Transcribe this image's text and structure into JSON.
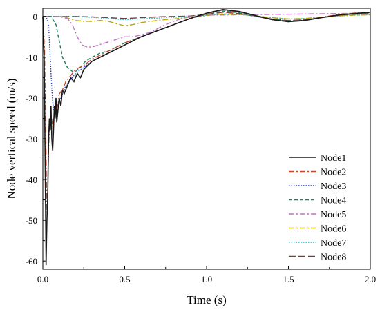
{
  "chart_data": {
    "type": "line",
    "title": "",
    "xlabel": "Time (s)",
    "ylabel": "Node vertical speed (m/s)",
    "xlim": [
      0,
      2.0
    ],
    "ylim": [
      -62,
      2
    ],
    "xticks": [
      "0.0",
      "0.5",
      "1.0",
      "1.5",
      "2.0"
    ],
    "yticks": [
      "-60",
      "-50",
      "-40",
      "-30",
      "-20",
      "-10",
      "0"
    ],
    "grid": false,
    "legend_position": "bottom-right",
    "series": [
      {
        "name": "Node1",
        "color": "#1a1a1a",
        "dash": "solid",
        "points": [
          [
            0,
            0
          ],
          [
            0.008,
            -10
          ],
          [
            0.015,
            -40
          ],
          [
            0.02,
            -61
          ],
          [
            0.025,
            -50
          ],
          [
            0.03,
            -44
          ],
          [
            0.035,
            -30
          ],
          [
            0.04,
            -25
          ],
          [
            0.045,
            -28
          ],
          [
            0.05,
            -22
          ],
          [
            0.055,
            -30
          ],
          [
            0.06,
            -33
          ],
          [
            0.065,
            -28
          ],
          [
            0.07,
            -22
          ],
          [
            0.075,
            -25
          ],
          [
            0.08,
            -20
          ],
          [
            0.085,
            -26
          ],
          [
            0.09,
            -24
          ],
          [
            0.1,
            -20
          ],
          [
            0.11,
            -22
          ],
          [
            0.12,
            -18
          ],
          [
            0.13,
            -19
          ],
          [
            0.15,
            -17
          ],
          [
            0.17,
            -15
          ],
          [
            0.19,
            -16
          ],
          [
            0.21,
            -14
          ],
          [
            0.23,
            -15
          ],
          [
            0.25,
            -13
          ],
          [
            0.3,
            -11
          ],
          [
            0.35,
            -10
          ],
          [
            0.4,
            -9
          ],
          [
            0.45,
            -8
          ],
          [
            0.5,
            -7
          ],
          [
            0.6,
            -5
          ],
          [
            0.7,
            -3.5
          ],
          [
            0.8,
            -2
          ],
          [
            0.9,
            -0.5
          ],
          [
            1.0,
            0.8
          ],
          [
            1.1,
            1.7
          ],
          [
            1.2,
            1.2
          ],
          [
            1.3,
            0.2
          ],
          [
            1.4,
            -0.8
          ],
          [
            1.5,
            -1.3
          ],
          [
            1.6,
            -1.0
          ],
          [
            1.7,
            -0.3
          ],
          [
            1.8,
            0.3
          ],
          [
            1.9,
            0.7
          ],
          [
            2.0,
            1.0
          ]
        ]
      },
      {
        "name": "Node2",
        "color": "#c8452b",
        "dash": "dashdot",
        "points": [
          [
            0,
            0
          ],
          [
            0.01,
            -8
          ],
          [
            0.018,
            -30
          ],
          [
            0.025,
            -48
          ],
          [
            0.03,
            -42
          ],
          [
            0.035,
            -33
          ],
          [
            0.04,
            -27
          ],
          [
            0.05,
            -24
          ],
          [
            0.06,
            -27
          ],
          [
            0.07,
            -24
          ],
          [
            0.08,
            -21
          ],
          [
            0.09,
            -23
          ],
          [
            0.1,
            -19
          ],
          [
            0.12,
            -18
          ],
          [
            0.14,
            -16
          ],
          [
            0.16,
            -15
          ],
          [
            0.18,
            -14
          ],
          [
            0.2,
            -13
          ],
          [
            0.25,
            -12
          ],
          [
            0.3,
            -10.5
          ],
          [
            0.35,
            -9.5
          ],
          [
            0.4,
            -8.5
          ],
          [
            0.45,
            -7.5
          ],
          [
            0.5,
            -6.5
          ],
          [
            0.6,
            -5
          ],
          [
            0.7,
            -3.5
          ],
          [
            0.8,
            -2
          ],
          [
            0.9,
            -0.5
          ],
          [
            1.0,
            0.7
          ],
          [
            1.1,
            1.6
          ],
          [
            1.2,
            1.1
          ],
          [
            1.3,
            0.1
          ],
          [
            1.4,
            -0.8
          ],
          [
            1.5,
            -1.3
          ],
          [
            1.6,
            -0.9
          ],
          [
            1.7,
            -0.2
          ],
          [
            1.8,
            0.4
          ],
          [
            1.9,
            0.8
          ],
          [
            2.0,
            1.0
          ]
        ]
      },
      {
        "name": "Node3",
        "color": "#2340c8",
        "dash": "dotted",
        "points": [
          [
            0,
            0
          ],
          [
            0.02,
            0
          ],
          [
            0.035,
            -2
          ],
          [
            0.045,
            -10
          ],
          [
            0.055,
            -18
          ],
          [
            0.065,
            -23
          ],
          [
            0.075,
            -24
          ],
          [
            0.085,
            -22
          ],
          [
            0.1,
            -21
          ],
          [
            0.12,
            -19
          ],
          [
            0.14,
            -17
          ],
          [
            0.16,
            -16
          ],
          [
            0.18,
            -15
          ],
          [
            0.2,
            -14
          ],
          [
            0.25,
            -12.5
          ],
          [
            0.3,
            -11
          ],
          [
            0.35,
            -10
          ],
          [
            0.4,
            -9
          ],
          [
            0.5,
            -7
          ],
          [
            0.6,
            -5
          ],
          [
            0.7,
            -3.5
          ],
          [
            0.8,
            -2
          ],
          [
            0.9,
            -0.5
          ],
          [
            1.0,
            0.7
          ],
          [
            1.1,
            1.6
          ],
          [
            1.2,
            1.1
          ],
          [
            1.3,
            0.1
          ],
          [
            1.4,
            -0.8
          ],
          [
            1.5,
            -1.3
          ],
          [
            1.6,
            -1.0
          ],
          [
            1.7,
            -0.3
          ],
          [
            1.8,
            0.3
          ],
          [
            1.9,
            0.7
          ],
          [
            2.0,
            1.0
          ]
        ]
      },
      {
        "name": "Node4",
        "color": "#1f7a5a",
        "dash": "dashed",
        "points": [
          [
            0,
            0
          ],
          [
            0.05,
            0
          ],
          [
            0.08,
            -2
          ],
          [
            0.1,
            -6
          ],
          [
            0.12,
            -10
          ],
          [
            0.15,
            -12.5
          ],
          [
            0.18,
            -13.5
          ],
          [
            0.2,
            -13.5
          ],
          [
            0.23,
            -12.5
          ],
          [
            0.26,
            -11
          ],
          [
            0.3,
            -10
          ],
          [
            0.35,
            -9
          ],
          [
            0.4,
            -8.5
          ],
          [
            0.45,
            -7.5
          ],
          [
            0.5,
            -6.5
          ],
          [
            0.6,
            -5
          ],
          [
            0.7,
            -3.5
          ],
          [
            0.8,
            -2
          ],
          [
            0.9,
            -0.5
          ],
          [
            1.0,
            0.5
          ],
          [
            1.1,
            1.3
          ],
          [
            1.2,
            0.9
          ],
          [
            1.3,
            0
          ],
          [
            1.4,
            -0.7
          ],
          [
            1.5,
            -1.1
          ],
          [
            1.6,
            -0.9
          ],
          [
            1.7,
            -0.3
          ],
          [
            1.8,
            0.3
          ],
          [
            1.9,
            0.6
          ],
          [
            2.0,
            0.8
          ]
        ]
      },
      {
        "name": "Node5",
        "color": "#c070c8",
        "dash": "dashdot",
        "points": [
          [
            0,
            0
          ],
          [
            0.1,
            0
          ],
          [
            0.15,
            -0.5
          ],
          [
            0.18,
            -2
          ],
          [
            0.21,
            -5
          ],
          [
            0.24,
            -7
          ],
          [
            0.27,
            -7.5
          ],
          [
            0.3,
            -7.5
          ],
          [
            0.34,
            -7
          ],
          [
            0.38,
            -6.5
          ],
          [
            0.42,
            -6
          ],
          [
            0.46,
            -5.5
          ],
          [
            0.5,
            -5
          ],
          [
            0.55,
            -5
          ],
          [
            0.6,
            -4.5
          ],
          [
            0.65,
            -4
          ],
          [
            0.7,
            -3
          ],
          [
            0.75,
            -2
          ],
          [
            0.8,
            -1.2
          ],
          [
            0.85,
            -0.5
          ],
          [
            0.9,
            0
          ],
          [
            0.95,
            0.2
          ],
          [
            1.0,
            0.3
          ],
          [
            1.2,
            0.4
          ],
          [
            1.4,
            0.5
          ],
          [
            1.6,
            0.6
          ],
          [
            1.8,
            0.7
          ],
          [
            2.0,
            0.8
          ]
        ]
      },
      {
        "name": "Node6",
        "color": "#b8a800",
        "dash": "dashdot",
        "points": [
          [
            0,
            0
          ],
          [
            0.12,
            0
          ],
          [
            0.16,
            -0.5
          ],
          [
            0.2,
            -1
          ],
          [
            0.25,
            -1.2
          ],
          [
            0.3,
            -1.2
          ],
          [
            0.35,
            -1.0
          ],
          [
            0.4,
            -1.2
          ],
          [
            0.45,
            -1.8
          ],
          [
            0.5,
            -2.3
          ],
          [
            0.55,
            -2.0
          ],
          [
            0.6,
            -1.5
          ],
          [
            0.7,
            -1.0
          ],
          [
            0.8,
            -0.6
          ],
          [
            0.9,
            -0.2
          ],
          [
            1.0,
            0.2
          ],
          [
            1.1,
            0.6
          ],
          [
            1.2,
            0.5
          ],
          [
            1.3,
            0.1
          ],
          [
            1.4,
            -0.3
          ],
          [
            1.5,
            -0.6
          ],
          [
            1.6,
            -0.5
          ],
          [
            1.7,
            -0.2
          ],
          [
            1.8,
            0.1
          ],
          [
            1.9,
            0.3
          ],
          [
            2.0,
            0.4
          ]
        ]
      },
      {
        "name": "Node7",
        "color": "#20b8c8",
        "dash": "dotted",
        "points": [
          [
            0,
            0
          ],
          [
            0.2,
            0
          ],
          [
            0.3,
            -0.2
          ],
          [
            0.4,
            -0.5
          ],
          [
            0.5,
            -0.8
          ],
          [
            0.6,
            -0.6
          ],
          [
            0.7,
            -0.4
          ],
          [
            0.8,
            -0.2
          ],
          [
            0.9,
            0
          ],
          [
            1.0,
            0.3
          ],
          [
            1.1,
            0.6
          ],
          [
            1.2,
            0.5
          ],
          [
            1.3,
            0.1
          ],
          [
            1.4,
            -0.3
          ],
          [
            1.5,
            -0.6
          ],
          [
            1.6,
            -0.5
          ],
          [
            1.7,
            -0.2
          ],
          [
            1.8,
            0.1
          ],
          [
            1.9,
            0.3
          ],
          [
            2.0,
            0.4
          ]
        ]
      },
      {
        "name": "Node8",
        "color": "#7a3a3a",
        "dash": "longdash",
        "points": [
          [
            0,
            0
          ],
          [
            0.2,
            0
          ],
          [
            0.3,
            -0.1
          ],
          [
            0.4,
            -0.3
          ],
          [
            0.5,
            -0.5
          ],
          [
            0.6,
            -0.3
          ],
          [
            0.7,
            -0.1
          ],
          [
            0.8,
            0
          ],
          [
            0.9,
            0.1
          ],
          [
            1.0,
            0.5
          ],
          [
            1.1,
            1.0
          ],
          [
            1.2,
            0.7
          ],
          [
            1.3,
            0
          ],
          [
            1.4,
            -0.6
          ],
          [
            1.5,
            -1.0
          ],
          [
            1.6,
            -0.8
          ],
          [
            1.7,
            -0.3
          ],
          [
            1.8,
            0.2
          ],
          [
            1.9,
            0.5
          ],
          [
            2.0,
            0.7
          ]
        ]
      }
    ]
  }
}
